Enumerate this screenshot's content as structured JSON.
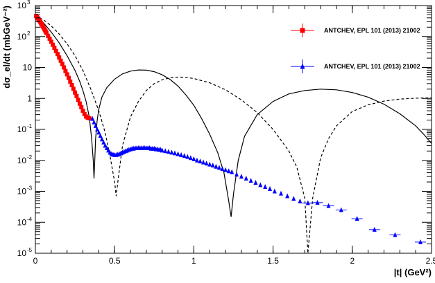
{
  "chart_data": {
    "type": "scatter",
    "xlabel": "|t| (GeV²)",
    "ylabel": "dσ_el/dt (mbGeV⁻²)",
    "xlim": [
      0,
      2.5
    ],
    "ylim": [
      1e-05,
      1000
    ],
    "yscale": "log",
    "grid": false,
    "legend_position": "top-right",
    "x_ticks": [
      "0",
      "0.5",
      "1",
      "1.5",
      "2",
      "2.5"
    ],
    "y_ticks": [
      {
        "mantissa": "10",
        "exp": "-5"
      },
      {
        "mantissa": "10",
        "exp": "-4"
      },
      {
        "mantissa": "10",
        "exp": "-3"
      },
      {
        "mantissa": "10",
        "exp": "-2"
      },
      {
        "mantissa": "10",
        "exp": "-1"
      },
      {
        "mantissa": "1",
        "exp": ""
      },
      {
        "mantissa": "10",
        "exp": ""
      },
      {
        "mantissa": "10",
        "exp": "2"
      },
      {
        "mantissa": "10",
        "exp": "3"
      }
    ],
    "series": [
      {
        "name": "ANTCHEV, EPL 101 (2013) 21002",
        "marker": "square",
        "color": "#ff0000",
        "points": [
          [
            0.005,
            460
          ],
          [
            0.01,
            420
          ],
          [
            0.015,
            390
          ],
          [
            0.02,
            360
          ],
          [
            0.025,
            330
          ],
          [
            0.03,
            300
          ],
          [
            0.035,
            270
          ],
          [
            0.04,
            245
          ],
          [
            0.045,
            220
          ],
          [
            0.05,
            200
          ],
          [
            0.055,
            180
          ],
          [
            0.06,
            160
          ],
          [
            0.065,
            145
          ],
          [
            0.07,
            130
          ],
          [
            0.08,
            105
          ],
          [
            0.09,
            85
          ],
          [
            0.1,
            68
          ],
          [
            0.11,
            54
          ],
          [
            0.12,
            43
          ],
          [
            0.13,
            34
          ],
          [
            0.14,
            27
          ],
          [
            0.15,
            21
          ],
          [
            0.16,
            16.5
          ],
          [
            0.17,
            13
          ],
          [
            0.18,
            10
          ],
          [
            0.19,
            7.7
          ],
          [
            0.2,
            6
          ],
          [
            0.21,
            4.6
          ],
          [
            0.22,
            3.5
          ],
          [
            0.23,
            2.7
          ],
          [
            0.24,
            2.05
          ],
          [
            0.25,
            1.55
          ],
          [
            0.26,
            1.2
          ],
          [
            0.27,
            0.9
          ],
          [
            0.28,
            0.68
          ],
          [
            0.29,
            0.52
          ],
          [
            0.3,
            0.4
          ],
          [
            0.31,
            0.31
          ],
          [
            0.32,
            0.26
          ],
          [
            0.33,
            0.24
          ],
          [
            0.34,
            0.23
          ]
        ]
      },
      {
        "name": "ANTCHEV, EPL 101 (2013) 21002",
        "marker": "triangle",
        "color": "#0000ff",
        "points": [
          [
            0.36,
            0.22
          ],
          [
            0.37,
            0.17
          ],
          [
            0.38,
            0.13
          ],
          [
            0.39,
            0.1
          ],
          [
            0.4,
            0.08
          ],
          [
            0.41,
            0.062
          ],
          [
            0.42,
            0.048
          ],
          [
            0.43,
            0.038
          ],
          [
            0.44,
            0.03
          ],
          [
            0.45,
            0.025
          ],
          [
            0.46,
            0.021
          ],
          [
            0.47,
            0.018
          ],
          [
            0.48,
            0.016
          ],
          [
            0.49,
            0.0155
          ],
          [
            0.5,
            0.015
          ],
          [
            0.51,
            0.015
          ],
          [
            0.52,
            0.0155
          ],
          [
            0.53,
            0.016
          ],
          [
            0.54,
            0.017
          ],
          [
            0.55,
            0.018
          ],
          [
            0.56,
            0.019
          ],
          [
            0.57,
            0.02
          ],
          [
            0.58,
            0.021
          ],
          [
            0.59,
            0.022
          ],
          [
            0.6,
            0.023
          ],
          [
            0.61,
            0.024
          ],
          [
            0.62,
            0.024
          ],
          [
            0.63,
            0.025
          ],
          [
            0.64,
            0.025
          ],
          [
            0.65,
            0.025
          ],
          [
            0.66,
            0.025
          ],
          [
            0.67,
            0.025
          ],
          [
            0.68,
            0.025
          ],
          [
            0.69,
            0.025
          ],
          [
            0.7,
            0.025
          ],
          [
            0.71,
            0.025
          ],
          [
            0.72,
            0.025
          ],
          [
            0.73,
            0.024
          ],
          [
            0.74,
            0.024
          ],
          [
            0.75,
            0.024
          ],
          [
            0.76,
            0.023
          ],
          [
            0.77,
            0.023
          ],
          [
            0.78,
            0.022
          ],
          [
            0.79,
            0.022
          ],
          [
            0.8,
            0.021
          ],
          [
            0.82,
            0.02
          ],
          [
            0.84,
            0.019
          ],
          [
            0.86,
            0.018
          ],
          [
            0.88,
            0.017
          ],
          [
            0.9,
            0.016
          ],
          [
            0.92,
            0.015
          ],
          [
            0.94,
            0.014
          ],
          [
            0.96,
            0.013
          ],
          [
            0.98,
            0.012
          ],
          [
            1.0,
            0.011
          ],
          [
            1.02,
            0.01
          ],
          [
            1.04,
            0.0093
          ],
          [
            1.06,
            0.0086
          ],
          [
            1.08,
            0.008
          ],
          [
            1.1,
            0.0074
          ],
          [
            1.12,
            0.0069
          ],
          [
            1.14,
            0.0063
          ],
          [
            1.16,
            0.0058
          ],
          [
            1.18,
            0.0053
          ],
          [
            1.2,
            0.0049
          ],
          [
            1.22,
            0.0045
          ],
          [
            1.24,
            0.0042
          ],
          [
            1.27,
            0.0035
          ],
          [
            1.3,
            0.003
          ],
          [
            1.33,
            0.0026
          ],
          [
            1.36,
            0.0022
          ],
          [
            1.39,
            0.0019
          ],
          [
            1.42,
            0.0016
          ],
          [
            1.45,
            0.0014
          ],
          [
            1.48,
            0.0012
          ],
          [
            1.51,
            0.001
          ],
          [
            1.55,
            0.00085
          ],
          [
            1.59,
            0.0007
          ],
          [
            1.63,
            0.00058
          ],
          [
            1.67,
            0.00048
          ],
          [
            1.72,
            0.00042
          ],
          [
            1.78,
            0.00043
          ],
          [
            1.85,
            0.00034
          ],
          [
            1.93,
            0.00025
          ],
          [
            2.03,
            0.00013
          ],
          [
            2.14,
            5.8e-05
          ],
          [
            2.27,
            3.9e-05
          ],
          [
            2.43,
            2.3e-05
          ]
        ]
      }
    ],
    "curves": [
      {
        "style": "solid",
        "color": "#000000",
        "points": [
          [
            0,
            480
          ],
          [
            0.05,
            280
          ],
          [
            0.1,
            140
          ],
          [
            0.15,
            62
          ],
          [
            0.2,
            24
          ],
          [
            0.25,
            8
          ],
          [
            0.28,
            3.5
          ],
          [
            0.3,
            1.8
          ],
          [
            0.32,
            0.8
          ],
          [
            0.34,
            0.25
          ],
          [
            0.355,
            0.05
          ],
          [
            0.365,
            0.01
          ],
          [
            0.37,
            0.0026
          ],
          [
            0.375,
            0.01
          ],
          [
            0.38,
            0.05
          ],
          [
            0.39,
            0.2
          ],
          [
            0.4,
            0.45
          ],
          [
            0.42,
            1.1
          ],
          [
            0.45,
            2.2
          ],
          [
            0.5,
            4.2
          ],
          [
            0.55,
            6.2
          ],
          [
            0.6,
            7.6
          ],
          [
            0.65,
            8.3
          ],
          [
            0.7,
            8.2
          ],
          [
            0.75,
            7.3
          ],
          [
            0.8,
            5.8
          ],
          [
            0.85,
            4.1
          ],
          [
            0.9,
            2.5
          ],
          [
            0.95,
            1.3
          ],
          [
            1.0,
            0.6
          ],
          [
            1.05,
            0.22
          ],
          [
            1.1,
            0.07
          ],
          [
            1.15,
            0.018
          ],
          [
            1.19,
            0.004
          ],
          [
            1.22,
            0.0005
          ],
          [
            1.235,
            0.00015
          ],
          [
            1.25,
            0.0008
          ],
          [
            1.28,
            0.01
          ],
          [
            1.32,
            0.06
          ],
          [
            1.4,
            0.3
          ],
          [
            1.5,
            0.8
          ],
          [
            1.6,
            1.4
          ],
          [
            1.7,
            1.8
          ],
          [
            1.8,
            2.0
          ],
          [
            1.9,
            1.9
          ],
          [
            2.0,
            1.55
          ],
          [
            2.1,
            1.1
          ],
          [
            2.2,
            0.65
          ],
          [
            2.3,
            0.32
          ],
          [
            2.4,
            0.13
          ],
          [
            2.45,
            0.07
          ],
          [
            2.5,
            0.035
          ]
        ]
      },
      {
        "style": "dashed",
        "color": "#000000",
        "points": [
          [
            0,
            480
          ],
          [
            0.05,
            350
          ],
          [
            0.1,
            220
          ],
          [
            0.15,
            120
          ],
          [
            0.2,
            58
          ],
          [
            0.25,
            24
          ],
          [
            0.3,
            8
          ],
          [
            0.35,
            2
          ],
          [
            0.4,
            0.4
          ],
          [
            0.44,
            0.08
          ],
          [
            0.47,
            0.015
          ],
          [
            0.5,
            0.002
          ],
          [
            0.51,
            0.0007
          ],
          [
            0.52,
            0.002
          ],
          [
            0.55,
            0.03
          ],
          [
            0.6,
            0.25
          ],
          [
            0.65,
            0.8
          ],
          [
            0.7,
            1.8
          ],
          [
            0.75,
            3
          ],
          [
            0.8,
            4
          ],
          [
            0.85,
            4.6
          ],
          [
            0.9,
            4.9
          ],
          [
            0.95,
            4.8
          ],
          [
            1.0,
            4.4
          ],
          [
            1.1,
            3.2
          ],
          [
            1.2,
            1.9
          ],
          [
            1.3,
            0.9
          ],
          [
            1.4,
            0.35
          ],
          [
            1.5,
            0.1
          ],
          [
            1.6,
            0.02
          ],
          [
            1.65,
            0.006
          ],
          [
            1.7,
            0.0006
          ],
          [
            1.72,
            1e-05
          ],
          [
            1.75,
            0.0006
          ],
          [
            1.8,
            0.012
          ],
          [
            1.85,
            0.05
          ],
          [
            1.9,
            0.13
          ],
          [
            2.0,
            0.38
          ],
          [
            2.1,
            0.62
          ],
          [
            2.2,
            0.82
          ],
          [
            2.3,
            0.95
          ],
          [
            2.4,
            1.02
          ],
          [
            2.5,
            1.05
          ]
        ]
      }
    ]
  }
}
